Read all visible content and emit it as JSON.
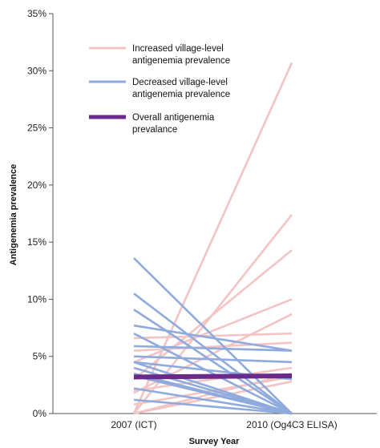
{
  "chart_data": {
    "type": "line",
    "xlabel": "Survey Year",
    "ylabel": "Antigenemia prevalence",
    "categories": [
      "2007 (ICT)",
      "2010 (Og4C3 ELISA)"
    ],
    "ylim": [
      0,
      0.35
    ],
    "yticks": [
      "0%",
      "5%",
      "10%",
      "15%",
      "20%",
      "25%",
      "30%",
      "35%"
    ],
    "grid": false,
    "legend_position": "top-left",
    "colors": {
      "increased": "#f2c4c4",
      "decreased": "#8faadc",
      "overall": "#6a2a8c"
    },
    "legend": [
      {
        "key": "increased",
        "label_lines": [
          "Increased village-level",
          "antigenemia prevalence"
        ]
      },
      {
        "key": "decreased",
        "label_lines": [
          "Decreased village-level",
          "antigenemia prevalence"
        ]
      },
      {
        "key": "overall",
        "label_lines": [
          "Overall antigenemia",
          "prevalance"
        ]
      }
    ],
    "series": [
      {
        "group": "increased",
        "values": [
          0.0,
          0.307
        ]
      },
      {
        "group": "increased",
        "values": [
          0.0,
          0.174
        ]
      },
      {
        "group": "increased",
        "values": [
          0.03,
          0.143
        ]
      },
      {
        "group": "increased",
        "values": [
          0.045,
          0.1
        ]
      },
      {
        "group": "increased",
        "values": [
          0.018,
          0.087
        ]
      },
      {
        "group": "increased",
        "values": [
          0.055,
          0.062
        ]
      },
      {
        "group": "increased",
        "values": [
          0.066,
          0.07
        ]
      },
      {
        "group": "increased",
        "values": [
          0.02,
          0.04
        ]
      },
      {
        "group": "increased",
        "values": [
          0.008,
          0.032
        ]
      },
      {
        "group": "increased",
        "values": [
          0.0,
          0.028
        ]
      },
      {
        "group": "increased",
        "values": [
          0.0,
          0.035
        ]
      },
      {
        "group": "decreased",
        "values": [
          0.136,
          0.0
        ]
      },
      {
        "group": "decreased",
        "values": [
          0.105,
          0.0
        ]
      },
      {
        "group": "decreased",
        "values": [
          0.091,
          0.0
        ]
      },
      {
        "group": "decreased",
        "values": [
          0.077,
          0.055
        ]
      },
      {
        "group": "decreased",
        "values": [
          0.07,
          0.0
        ]
      },
      {
        "group": "decreased",
        "values": [
          0.059,
          0.055
        ]
      },
      {
        "group": "decreased",
        "values": [
          0.05,
          0.045
        ]
      },
      {
        "group": "decreased",
        "values": [
          0.045,
          0.0
        ]
      },
      {
        "group": "decreased",
        "values": [
          0.04,
          0.0
        ]
      },
      {
        "group": "decreased",
        "values": [
          0.033,
          0.0
        ]
      },
      {
        "group": "decreased",
        "values": [
          0.022,
          0.0
        ]
      },
      {
        "group": "decreased",
        "values": [
          0.012,
          0.0
        ]
      },
      {
        "group": "decreased",
        "values": [
          0.045,
          0.03
        ]
      },
      {
        "group": "decreased",
        "values": [
          0.035,
          0.0
        ]
      },
      {
        "group": "overall",
        "values": [
          0.032,
          0.033
        ]
      }
    ]
  }
}
